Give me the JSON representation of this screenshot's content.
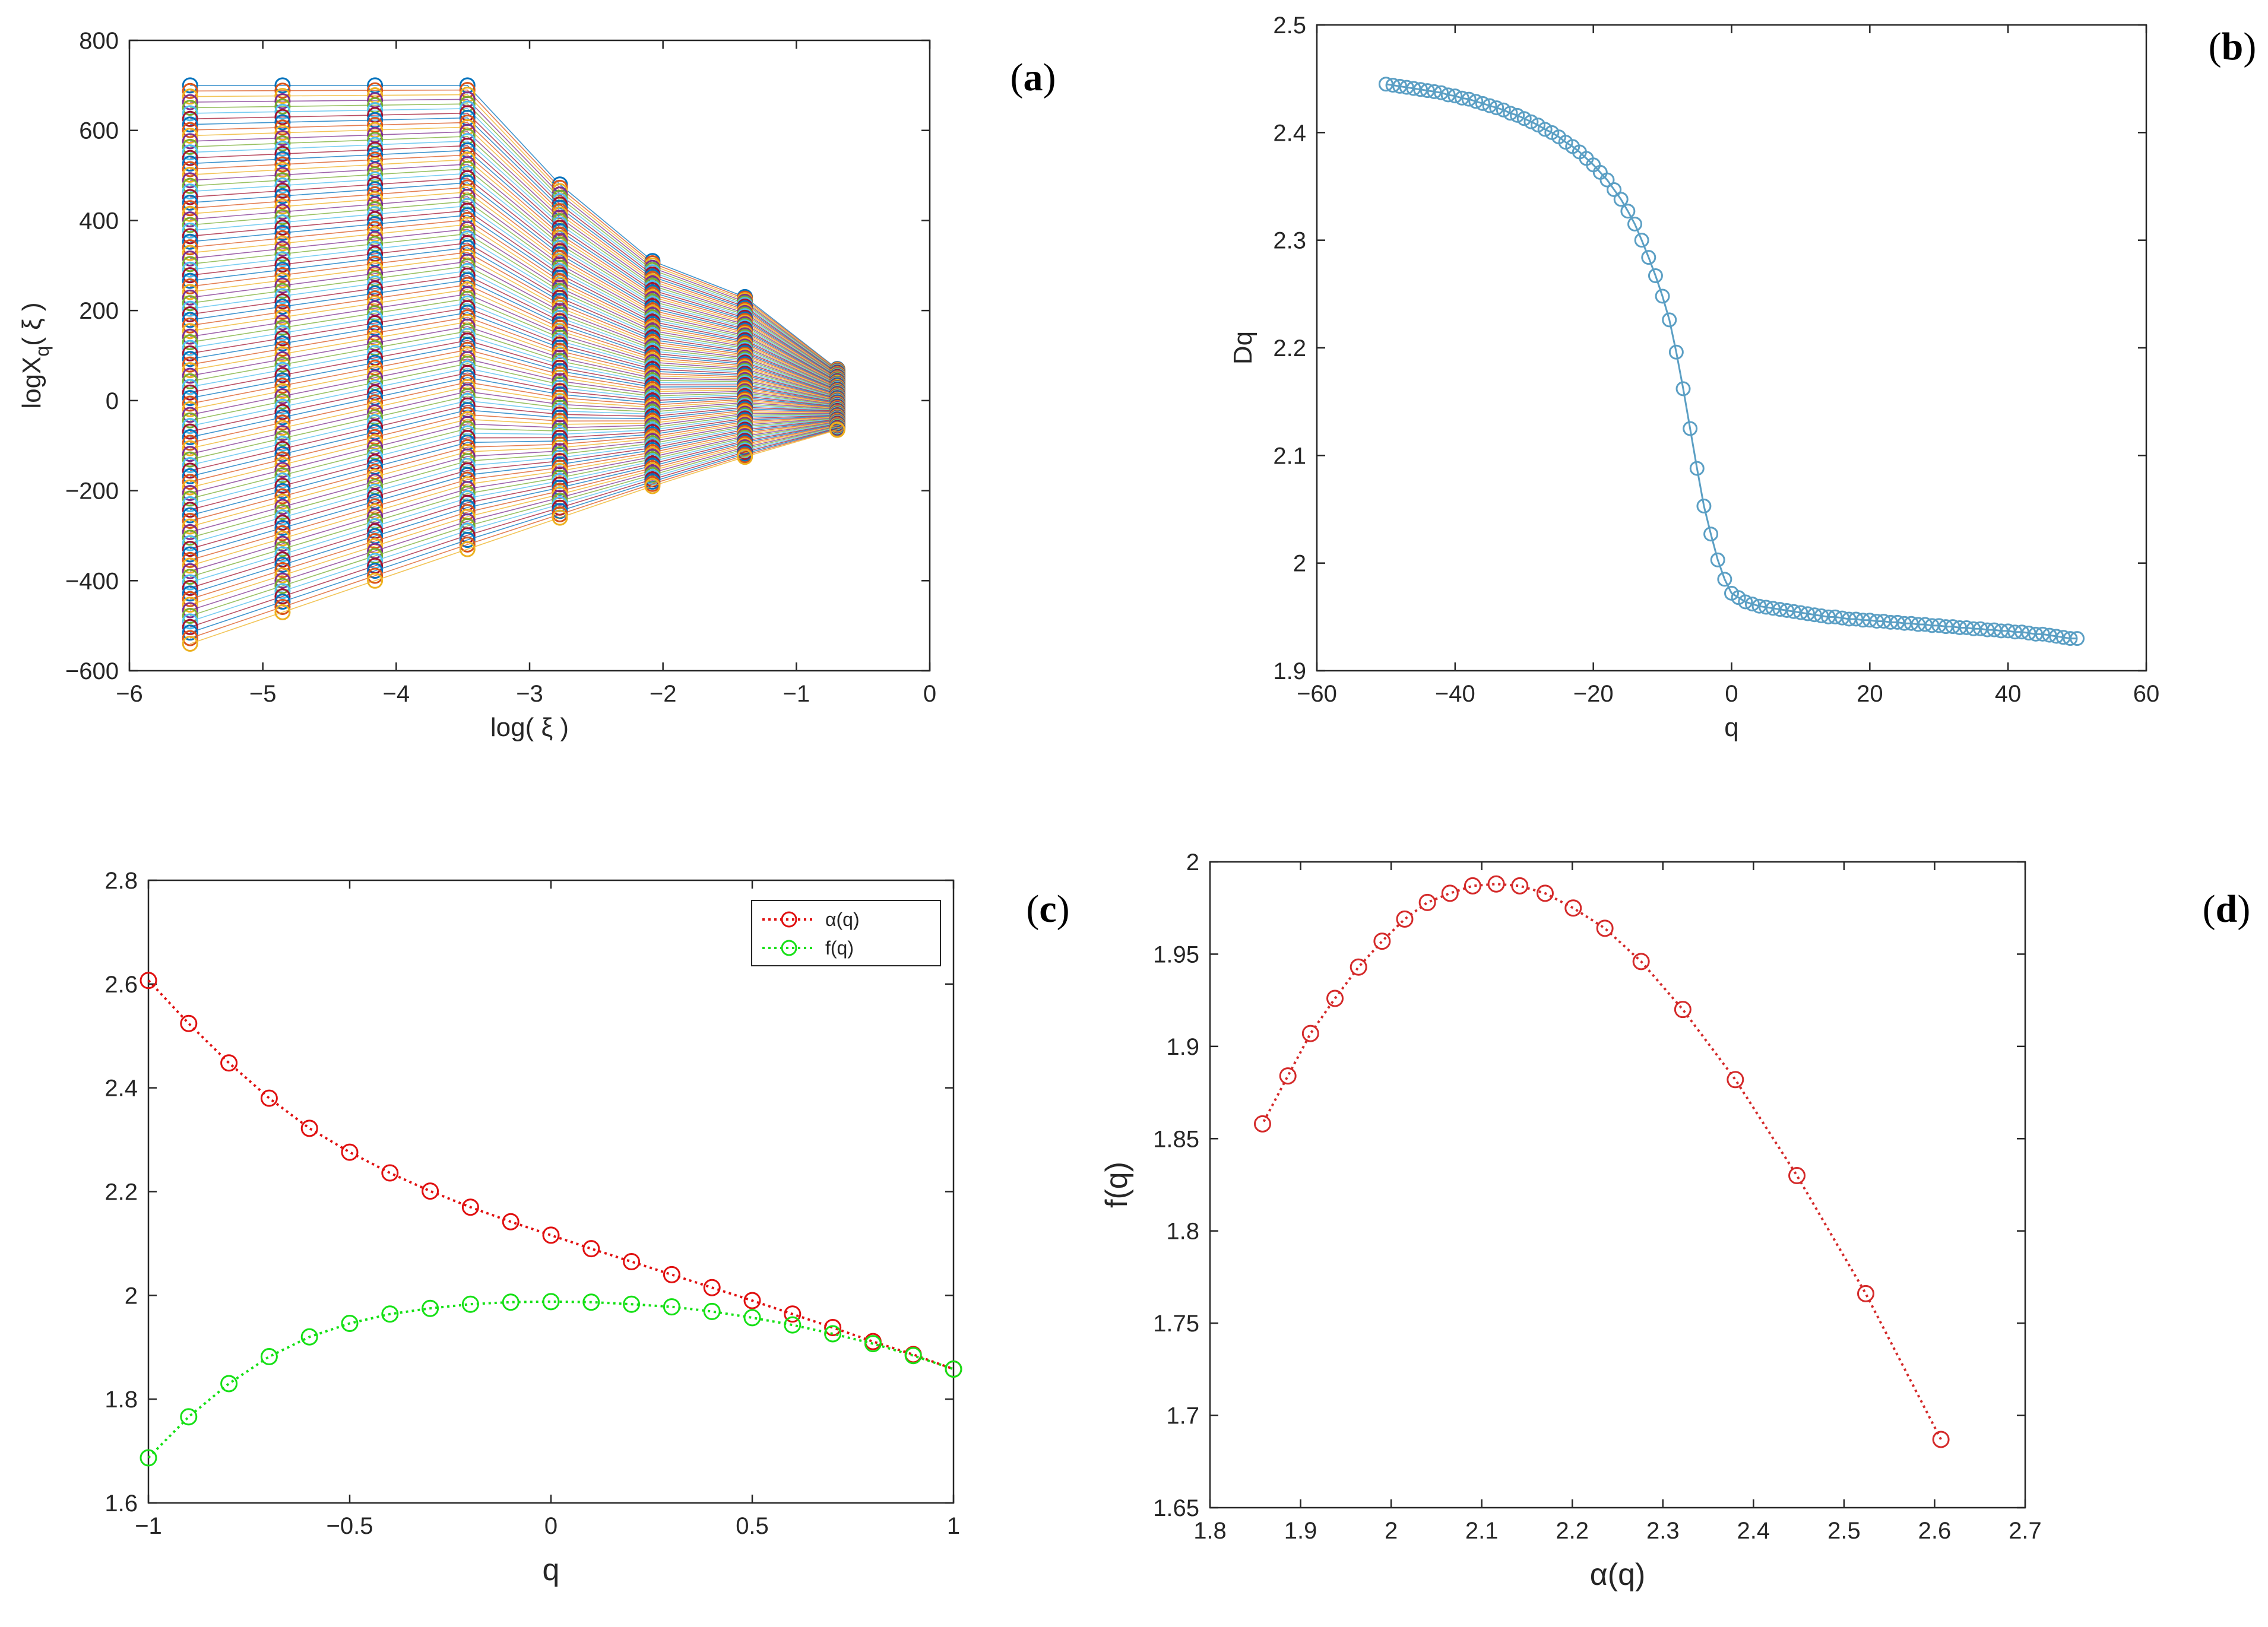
{
  "chart_data": [
    {
      "id": "a",
      "panel_label": "a",
      "type": "line",
      "xlabel": "log( ξ )",
      "ylabel_main": "logX",
      "ylabel_sub": "q",
      "ylabel_tail": "( ξ )",
      "xlim": [
        -6,
        0
      ],
      "ylim": [
        -600,
        800
      ],
      "xticks": [
        -6,
        -5,
        -4,
        -3,
        -2,
        -1,
        0
      ],
      "xtick_labels": [
        "−6",
        "−5",
        "−4",
        "−3",
        "−2",
        "−1",
        "0"
      ],
      "yticks": [
        -600,
        -400,
        -200,
        0,
        200,
        400,
        600,
        800
      ],
      "ytick_labels": [
        "−600",
        "−400",
        "−200",
        "0",
        "200",
        "400",
        "600",
        "800"
      ],
      "x": [
        -5.545,
        -4.852,
        -4.159,
        -3.466,
        -2.773,
        -2.079,
        -1.386,
        -0.693
      ],
      "q_range": [
        -50,
        50
      ],
      "y_at_q_min": [
        700,
        700,
        700,
        700,
        480,
        310,
        230,
        70
      ],
      "y_at_q_max": [
        -540,
        -470,
        -400,
        -330,
        -260,
        -190,
        -125,
        -65
      ],
      "series_count": 101,
      "colors": [
        "#0072BD",
        "#D95319",
        "#EDB120",
        "#7E2F8E",
        "#77AC30",
        "#4DBEEE",
        "#A2142F"
      ]
    },
    {
      "id": "b",
      "panel_label": "b",
      "type": "line",
      "xlabel": "q",
      "ylabel": "Dq",
      "xlim": [
        -60,
        60
      ],
      "ylim": [
        1.9,
        2.5
      ],
      "xticks": [
        -60,
        -40,
        -20,
        0,
        20,
        40,
        60
      ],
      "xtick_labels": [
        "−60",
        "−40",
        "−20",
        "0",
        "20",
        "40",
        "60"
      ],
      "yticks": [
        1.9,
        2.0,
        2.1,
        2.2,
        2.3,
        2.4,
        2.5
      ],
      "ytick_labels": [
        "1.9",
        "2",
        "2.1",
        "2.2",
        "2.3",
        "2.4",
        "2.5"
      ],
      "color": "#5b9fc4",
      "q": [
        -50,
        -49,
        -48,
        -47,
        -46,
        -45,
        -44,
        -43,
        -42,
        -41,
        -40,
        -39,
        -38,
        -37,
        -36,
        -35,
        -34,
        -33,
        -32,
        -31,
        -30,
        -29,
        -28,
        -27,
        -26,
        -25,
        -24,
        -23,
        -22,
        -21,
        -20,
        -19,
        -18,
        -17,
        -16,
        -15,
        -14,
        -13,
        -12,
        -11,
        -10,
        -9,
        -8,
        -7,
        -6,
        -5,
        -4,
        -3,
        -2,
        -1,
        0,
        1,
        2,
        3,
        4,
        5,
        6,
        7,
        8,
        9,
        10,
        11,
        12,
        13,
        14,
        15,
        16,
        17,
        18,
        19,
        20,
        21,
        22,
        23,
        24,
        25,
        26,
        27,
        28,
        29,
        30,
        31,
        32,
        33,
        34,
        35,
        36,
        37,
        38,
        39,
        40,
        41,
        42,
        43,
        44,
        45,
        46,
        47,
        48,
        49,
        50
      ],
      "Dq": [
        2.445,
        2.444,
        2.443,
        2.442,
        2.441,
        2.44,
        2.439,
        2.438,
        2.437,
        2.435,
        2.434,
        2.432,
        2.431,
        2.429,
        2.427,
        2.425,
        2.423,
        2.421,
        2.418,
        2.416,
        2.413,
        2.41,
        2.407,
        2.403,
        2.4,
        2.396,
        2.391,
        2.387,
        2.382,
        2.376,
        2.37,
        2.363,
        2.356,
        2.347,
        2.338,
        2.327,
        2.315,
        2.3,
        2.284,
        2.267,
        2.248,
        2.226,
        2.196,
        2.162,
        2.125,
        2.088,
        2.053,
        2.027,
        2.003,
        1.985,
        1.972,
        1.968,
        1.964,
        1.962,
        1.96,
        1.959,
        1.958,
        1.957,
        1.956,
        1.955,
        1.954,
        1.953,
        1.952,
        1.951,
        1.95,
        1.95,
        1.949,
        1.948,
        1.948,
        1.947,
        1.947,
        1.946,
        1.946,
        1.945,
        1.945,
        1.944,
        1.944,
        1.943,
        1.943,
        1.942,
        1.942,
        1.941,
        1.941,
        1.94,
        1.94,
        1.939,
        1.939,
        1.938,
        1.938,
        1.937,
        1.937,
        1.936,
        1.936,
        1.935,
        1.934,
        1.934,
        1.933,
        1.932,
        1.931,
        1.93,
        1.93
      ]
    },
    {
      "id": "c",
      "panel_label": "c",
      "type": "line",
      "xlabel": "q",
      "ylabel": "",
      "xlim": [
        -1,
        1
      ],
      "ylim": [
        1.6,
        2.8
      ],
      "xticks": [
        -1,
        -0.5,
        0,
        0.5,
        1
      ],
      "xtick_labels": [
        "−1",
        "−0.5",
        "0",
        "0.5",
        "1"
      ],
      "yticks": [
        1.6,
        1.8,
        2.0,
        2.2,
        2.4,
        2.6,
        2.8
      ],
      "ytick_labels": [
        "1.6",
        "1.8",
        "2",
        "2.2",
        "2.4",
        "2.6",
        "2.8"
      ],
      "legend_position": "top-right",
      "x": [
        -1.0,
        -0.9,
        -0.8,
        -0.7,
        -0.6,
        -0.5,
        -0.4,
        -0.3,
        -0.2,
        -0.1,
        0.0,
        0.1,
        0.2,
        0.3,
        0.4,
        0.5,
        0.6,
        0.7,
        0.8,
        0.9,
        1.0
      ],
      "series": [
        {
          "name": "α(q)",
          "color": "#e01010",
          "values": [
            2.607,
            2.524,
            2.448,
            2.38,
            2.322,
            2.276,
            2.236,
            2.201,
            2.17,
            2.142,
            2.116,
            2.09,
            2.065,
            2.04,
            2.015,
            1.99,
            1.964,
            1.938,
            1.911,
            1.886,
            1.858
          ]
        },
        {
          "name": "f(q)",
          "color": "#16e016",
          "values": [
            1.687,
            1.766,
            1.83,
            1.882,
            1.92,
            1.946,
            1.964,
            1.975,
            1.983,
            1.987,
            1.988,
            1.987,
            1.983,
            1.978,
            1.969,
            1.957,
            1.943,
            1.926,
            1.907,
            1.884,
            1.858
          ]
        }
      ]
    },
    {
      "id": "d",
      "panel_label": "d",
      "type": "line",
      "xlabel": "α(q)",
      "ylabel": "f(q)",
      "xlim": [
        1.8,
        2.7
      ],
      "ylim": [
        1.65,
        2.0
      ],
      "xticks": [
        1.8,
        1.9,
        2.0,
        2.1,
        2.2,
        2.3,
        2.4,
        2.5,
        2.6,
        2.7
      ],
      "xtick_labels": [
        "1.8",
        "1.9",
        "2",
        "2.1",
        "2.2",
        "2.3",
        "2.4",
        "2.5",
        "2.6",
        "2.7"
      ],
      "yticks": [
        1.65,
        1.7,
        1.75,
        1.8,
        1.85,
        1.9,
        1.95,
        2.0
      ],
      "ytick_labels": [
        "1.65",
        "1.7",
        "1.75",
        "1.8",
        "1.85",
        "1.9",
        "1.95",
        "2"
      ],
      "color": "#d42a2a",
      "x": [
        2.607,
        2.524,
        2.448,
        2.38,
        2.322,
        2.276,
        2.236,
        2.201,
        2.17,
        2.142,
        2.116,
        2.09,
        2.065,
        2.04,
        2.015,
        1.99,
        1.964,
        1.938,
        1.911,
        1.886,
        1.858
      ],
      "y": [
        1.687,
        1.766,
        1.83,
        1.882,
        1.92,
        1.946,
        1.964,
        1.975,
        1.983,
        1.987,
        1.988,
        1.987,
        1.983,
        1.978,
        1.969,
        1.957,
        1.943,
        1.926,
        1.907,
        1.884,
        1.858
      ]
    }
  ]
}
